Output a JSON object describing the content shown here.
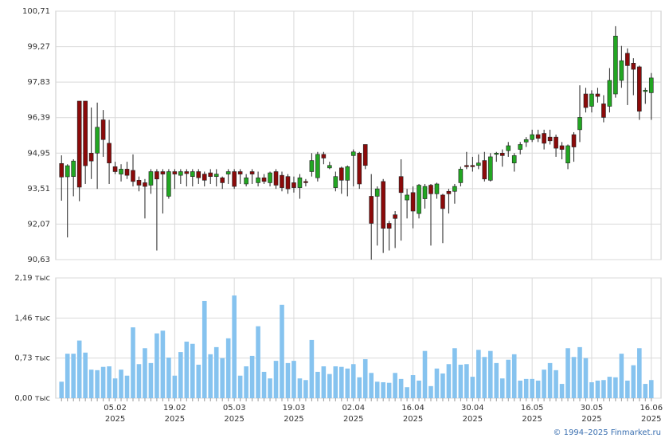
{
  "chart_data": [
    {
      "type": "candlestick",
      "ylim": [
        90.63,
        100.71
      ],
      "yticks": [
        {
          "value": 90.63,
          "label": "90,63"
        },
        {
          "value": 92.07,
          "label": "92,07"
        },
        {
          "value": 93.51,
          "label": "93,51"
        },
        {
          "value": 94.95,
          "label": "94,95"
        },
        {
          "value": 96.39,
          "label": "96,39"
        },
        {
          "value": 97.83,
          "label": "97,83"
        },
        {
          "value": 99.27,
          "label": "99,27"
        },
        {
          "value": 100.71,
          "label": "100,71"
        }
      ],
      "up_color": "#22a622",
      "down_color": "#8b0a0a",
      "grid": true,
      "open": [
        94.53,
        93.99,
        94.0,
        97.06,
        97.06,
        94.95,
        94.95,
        96.3,
        95.35,
        94.4,
        94.1,
        94.3,
        94.25,
        93.85,
        93.75,
        93.65,
        94.2,
        94.2,
        93.2,
        94.2,
        94.05,
        94.2,
        94.0,
        94.2,
        94.1,
        94.15,
        94.0,
        93.95,
        94.1,
        94.2,
        94.2,
        93.7,
        94.2,
        93.75,
        93.95,
        93.75,
        94.2,
        94.05,
        94.0,
        93.75,
        93.55,
        93.8,
        94.2,
        93.95,
        94.9,
        94.35,
        93.55,
        94.35,
        93.85,
        94.85,
        94.95,
        95.3,
        93.2,
        93.2,
        93.8,
        92.1,
        92.45,
        94.0,
        93.05,
        93.35,
        92.5,
        93.1,
        93.65,
        93.3,
        93.25,
        93.4,
        93.4,
        93.75,
        94.45,
        94.45,
        94.45,
        94.65,
        93.85,
        94.9,
        94.95,
        95.05,
        94.55,
        95.1,
        95.4,
        95.5,
        95.7,
        95.75,
        95.6,
        95.6,
        95.25,
        94.55,
        95.7,
        95.9,
        97.35,
        96.85,
        97.35,
        96.95,
        96.85,
        97.35,
        97.9,
        99.0,
        98.6,
        98.45,
        97.45,
        97.4
      ],
      "high": [
        94.86,
        94.5,
        94.7,
        97.06,
        97.06,
        96.8,
        97.0,
        96.7,
        96.3,
        94.6,
        94.5,
        94.6,
        94.9,
        94.0,
        93.9,
        94.3,
        94.3,
        94.3,
        94.3,
        94.3,
        94.3,
        94.3,
        94.3,
        94.3,
        94.2,
        94.3,
        94.3,
        94.0,
        94.3,
        94.3,
        94.3,
        94.1,
        94.3,
        94.2,
        94.1,
        94.2,
        94.3,
        94.2,
        94.1,
        94.0,
        94.1,
        93.9,
        94.95,
        95.0,
        95.0,
        94.6,
        94.2,
        94.4,
        94.45,
        95.1,
        95.0,
        95.3,
        94.1,
        93.6,
        93.9,
        92.2,
        92.6,
        94.7,
        93.5,
        93.6,
        93.7,
        93.7,
        93.7,
        93.75,
        93.3,
        93.5,
        93.7,
        94.4,
        95.0,
        94.8,
        94.9,
        95.0,
        94.95,
        95.0,
        95.1,
        95.4,
        94.95,
        95.4,
        95.6,
        95.9,
        95.9,
        95.9,
        95.9,
        95.7,
        95.4,
        95.3,
        95.8,
        97.7,
        97.6,
        97.5,
        97.6,
        97.3,
        98.4,
        100.1,
        99.3,
        99.2,
        98.8,
        98.5,
        97.6,
        98.2
      ],
      "low": [
        93.02,
        91.53,
        93.2,
        93.0,
        93.7,
        93.9,
        93.5,
        94.8,
        93.7,
        94.1,
        93.8,
        93.9,
        93.6,
        93.4,
        92.3,
        93.3,
        91.0,
        92.5,
        93.1,
        93.5,
        93.7,
        93.6,
        93.6,
        93.7,
        93.6,
        93.7,
        93.6,
        93.5,
        93.7,
        93.5,
        93.7,
        93.6,
        93.7,
        93.6,
        93.7,
        93.6,
        93.5,
        93.4,
        93.3,
        93.35,
        93.1,
        93.6,
        94.0,
        93.8,
        94.5,
        94.3,
        93.4,
        93.3,
        93.2,
        93.6,
        93.5,
        94.3,
        90.63,
        91.2,
        90.9,
        91.0,
        91.1,
        91.4,
        92.3,
        91.9,
        92.3,
        92.7,
        91.2,
        93.1,
        91.3,
        92.5,
        92.9,
        93.6,
        94.3,
        94.2,
        94.3,
        93.8,
        93.8,
        94.6,
        94.4,
        94.8,
        94.2,
        94.9,
        95.2,
        95.4,
        95.4,
        95.1,
        95.3,
        94.8,
        94.7,
        94.3,
        94.6,
        95.4,
        96.6,
        96.6,
        97.0,
        96.2,
        96.6,
        97.2,
        97.6,
        96.9,
        97.3,
        96.3,
        96.95,
        96.3
      ],
      "close": [
        93.98,
        94.44,
        94.63,
        93.57,
        94.44,
        94.63,
        96.0,
        95.5,
        94.55,
        94.2,
        94.3,
        94.05,
        93.8,
        93.65,
        93.6,
        94.2,
        93.9,
        94.1,
        94.2,
        94.1,
        94.2,
        94.12,
        94.2,
        93.95,
        93.85,
        94.0,
        94.1,
        93.75,
        94.2,
        93.6,
        94.1,
        93.95,
        94.1,
        93.95,
        93.8,
        94.15,
        93.65,
        93.55,
        93.5,
        93.55,
        93.95,
        93.75,
        94.65,
        94.9,
        94.75,
        94.45,
        94.0,
        93.85,
        94.4,
        95.0,
        93.7,
        94.45,
        92.1,
        93.5,
        91.9,
        91.9,
        92.3,
        93.35,
        93.25,
        92.6,
        93.65,
        93.6,
        93.3,
        93.7,
        92.7,
        93.3,
        93.6,
        94.3,
        94.4,
        94.4,
        94.55,
        93.9,
        94.8,
        94.95,
        94.85,
        95.25,
        94.85,
        95.3,
        95.5,
        95.7,
        95.55,
        95.35,
        95.45,
        95.15,
        95.1,
        95.25,
        95.2,
        96.4,
        96.8,
        97.35,
        97.25,
        96.4,
        97.9,
        99.7,
        98.7,
        98.5,
        98.35,
        96.65,
        97.5,
        98.0
      ]
    },
    {
      "type": "bar",
      "ylim": [
        0,
        2.19
      ],
      "yticks": [
        {
          "value": 0,
          "label": "0,00 тыс"
        },
        {
          "value": 0.73,
          "label": "0,73 тыс"
        },
        {
          "value": 1.46,
          "label": "1,46 тыс"
        },
        {
          "value": 2.19,
          "label": "2,19 тыс"
        }
      ],
      "color": "#86c3ef",
      "grid": true,
      "categories": [
        null,
        null,
        null,
        null,
        null,
        null,
        null,
        null,
        null,
        "05.02",
        null,
        null,
        null,
        null,
        null,
        null,
        null,
        null,
        null,
        "19.02",
        null,
        null,
        null,
        null,
        null,
        null,
        null,
        null,
        null,
        "05.03",
        null,
        null,
        null,
        null,
        null,
        null,
        null,
        null,
        null,
        "19.03",
        null,
        null,
        null,
        null,
        null,
        null,
        null,
        null,
        null,
        "02.04",
        null,
        null,
        null,
        null,
        null,
        null,
        null,
        null,
        null,
        "16.04",
        null,
        null,
        null,
        null,
        null,
        null,
        null,
        null,
        null,
        "30.04",
        null,
        null,
        null,
        null,
        null,
        null,
        null,
        null,
        null,
        "16.05",
        null,
        null,
        null,
        null,
        null,
        null,
        null,
        null,
        null,
        "30.05",
        null,
        null,
        null,
        null,
        null,
        null,
        null,
        null,
        null,
        "16.06"
      ],
      "year_label": "2025",
      "values": [
        0.3,
        0.81,
        0.81,
        1.05,
        0.83,
        0.52,
        0.51,
        0.57,
        0.58,
        0.36,
        0.52,
        0.41,
        1.29,
        0.62,
        0.91,
        0.64,
        1.18,
        1.23,
        0.74,
        0.41,
        0.84,
        1.03,
        0.99,
        0.61,
        1.77,
        0.8,
        0.93,
        0.73,
        1.09,
        1.87,
        0.41,
        0.58,
        0.77,
        1.31,
        0.48,
        0.36,
        0.68,
        1.7,
        0.64,
        0.68,
        0.36,
        0.33,
        1.06,
        0.48,
        0.58,
        0.44,
        0.58,
        0.57,
        0.54,
        0.62,
        0.38,
        0.71,
        0.46,
        0.3,
        0.29,
        0.28,
        0.46,
        0.35,
        0.2,
        0.42,
        0.32,
        0.86,
        0.22,
        0.54,
        0.45,
        0.62,
        0.91,
        0.61,
        0.62,
        0.39,
        0.88,
        0.75,
        0.86,
        0.64,
        0.36,
        0.7,
        0.8,
        0.32,
        0.35,
        0.35,
        0.32,
        0.52,
        0.64,
        0.51,
        0.26,
        0.91,
        0.75,
        0.93,
        0.73,
        0.29,
        0.32,
        0.33,
        0.39,
        0.38,
        0.81,
        0.32,
        0.6,
        0.91,
        0.26,
        0.33
      ]
    }
  ],
  "footer": "© 1994–2025 Finmarket.ru"
}
